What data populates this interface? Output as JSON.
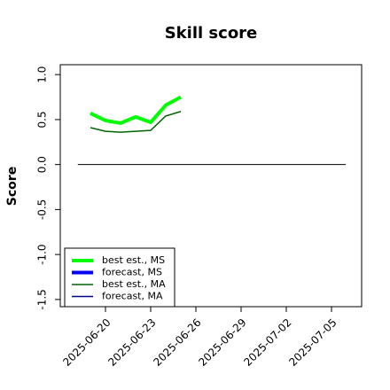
{
  "chart_data": {
    "type": "line",
    "title": "Skill score",
    "ylabel": "Score",
    "x": [
      "2025-06-19",
      "2025-06-20",
      "2025-06-21",
      "2025-06-22",
      "2025-06-23",
      "2025-06-24",
      "2025-06-25"
    ],
    "series": [
      {
        "name": "best est., MS",
        "color": "#00ff00",
        "width": 4,
        "values": [
          0.57,
          0.49,
          0.46,
          0.53,
          0.47,
          0.66,
          0.75
        ]
      },
      {
        "name": "forecast, MS",
        "color": "#0000ff",
        "width": 4,
        "values": [
          null,
          null,
          null,
          null,
          null,
          null,
          null
        ]
      },
      {
        "name": "best est., MA",
        "color": "#006400",
        "width": 1.5,
        "values": [
          0.41,
          0.37,
          0.36,
          0.37,
          0.38,
          0.54,
          0.59
        ]
      },
      {
        "name": "forecast, MA",
        "color": "#00008b",
        "width": 1.5,
        "values": [
          null,
          null,
          null,
          null,
          null,
          null,
          null
        ]
      }
    ],
    "xlim": [
      "2025-06-17",
      "2025-07-07"
    ],
    "xticks": [
      "2025-06-20",
      "2025-06-23",
      "2025-06-26",
      "2025-06-29",
      "2025-07-02",
      "2025-07-05"
    ],
    "xtick_label_colors": [
      "#000000",
      "#000000",
      "#228b22",
      "#000000",
      "#000000",
      "#000000"
    ],
    "ylim": [
      -1.58,
      1.11
    ],
    "yticks": [
      {
        "value": 1,
        "label": "1.0"
      },
      0.5,
      {
        "value": 0,
        "label": "0.0"
      },
      -0.5,
      {
        "value": -1,
        "label": "-1.0"
      },
      -1.5
    ],
    "reference_line": 0,
    "legend": "bottom-left"
  }
}
